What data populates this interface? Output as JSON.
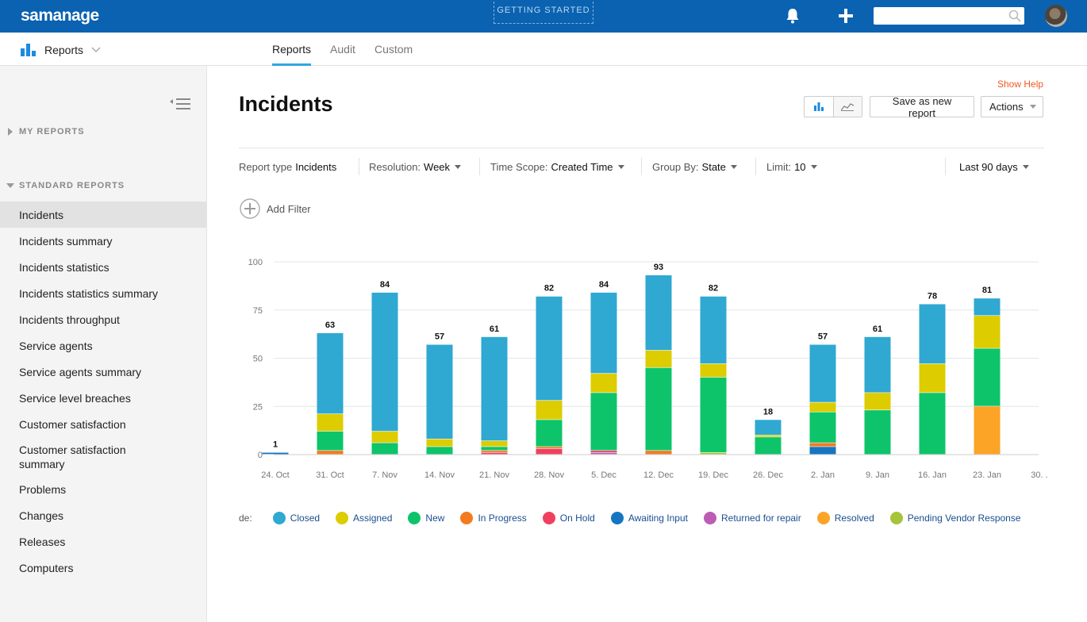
{
  "topbar": {
    "logo": "samanage",
    "getting_started": "GETTING STARTED",
    "search_placeholder": ""
  },
  "subnav": {
    "menu_label": "Reports",
    "tabs": [
      {
        "label": "Reports",
        "active": true
      },
      {
        "label": "Audit",
        "active": false
      },
      {
        "label": "Custom",
        "active": false
      }
    ]
  },
  "sidebar": {
    "my_reports": "MY REPORTS",
    "standard_reports": "STANDARD REPORTS",
    "items": [
      "Incidents",
      "Incidents summary",
      "Incidents statistics",
      "Incidents statistics summary",
      "Incidents throughput",
      "Service agents",
      "Service agents summary",
      "Service level breaches",
      "Customer satisfaction",
      "Customer satisfaction summary",
      "Problems",
      "Changes",
      "Releases",
      "Computers"
    ]
  },
  "main": {
    "show_help": "Show Help",
    "title": "Incidents",
    "save_button": "Save as new report",
    "actions_button": "Actions",
    "filters": {
      "report_type_label": "Report type",
      "report_type_value": "Incidents",
      "resolution_label": "Resolution:",
      "resolution_value": "Week",
      "time_scope_label": "Time Scope:",
      "time_scope_value": "Created Time",
      "group_by_label": "Group By:",
      "group_by_value": "State",
      "limit_label": "Limit:",
      "limit_value": "10",
      "range_value": "Last 90 days"
    },
    "add_filter": "Add Filter",
    "legend_title": "de:"
  },
  "colors": {
    "Closed": "#2fa8d2",
    "Assigned": "#ddcc00",
    "New": "#0dc46a",
    "In Progress": "#f47a20",
    "On Hold": "#f0405f",
    "Awaiting Input": "#1575c2",
    "Returned for repair": "#bd5cb4",
    "Resolved": "#fba426",
    "Pending Vendor Response": "#a6c43a"
  },
  "chart_data": {
    "type": "bar",
    "stacked": true,
    "categories": [
      "24. Oct",
      "31. Oct",
      "7. Nov",
      "14. Nov",
      "21. Nov",
      "28. Nov",
      "5. Dec",
      "12. Dec",
      "19. Dec",
      "26. Dec",
      "2. Jan",
      "9. Jan",
      "16. Jan",
      "23. Jan",
      "30. ..."
    ],
    "totals": [
      1,
      63,
      84,
      57,
      61,
      82,
      84,
      93,
      82,
      18,
      57,
      61,
      78,
      81,
      null
    ],
    "ylim": [
      0,
      100
    ],
    "yticks": [
      0,
      25,
      50,
      75,
      100
    ],
    "grid": true,
    "legend": "bottom",
    "series": [
      {
        "name": "Awaiting Input",
        "values": [
          1,
          0,
          0,
          0,
          0,
          0,
          0,
          0,
          0,
          0,
          4,
          0,
          0,
          0,
          0
        ]
      },
      {
        "name": "Pending Vendor Response",
        "values": [
          0,
          0,
          0,
          0,
          0,
          0,
          0,
          0,
          1,
          0,
          0,
          0,
          0,
          0,
          0
        ]
      },
      {
        "name": "Resolved",
        "values": [
          0,
          0,
          0,
          0,
          0,
          0,
          0,
          0,
          0,
          0,
          0,
          0,
          0,
          25,
          0
        ]
      },
      {
        "name": "Returned for repair",
        "values": [
          0,
          0,
          0,
          0,
          0,
          0,
          1,
          0,
          0,
          0,
          0,
          0,
          0,
          0,
          0
        ]
      },
      {
        "name": "On Hold",
        "values": [
          0,
          0,
          0,
          0,
          1,
          3,
          1,
          0,
          0,
          0,
          0,
          0,
          0,
          0,
          0
        ]
      },
      {
        "name": "In Progress",
        "values": [
          0,
          2,
          0,
          0,
          1,
          1,
          0,
          2,
          0,
          0,
          2,
          0,
          0,
          0,
          0
        ]
      },
      {
        "name": "New",
        "values": [
          0,
          10,
          6,
          4,
          2,
          14,
          30,
          43,
          39,
          9,
          16,
          23,
          32,
          30,
          0
        ]
      },
      {
        "name": "Assigned",
        "values": [
          0,
          9,
          6,
          4,
          3,
          10,
          10,
          9,
          7,
          1,
          5,
          9,
          15,
          17,
          0
        ]
      },
      {
        "name": "Closed",
        "values": [
          0,
          42,
          72,
          49,
          54,
          54,
          42,
          39,
          35,
          8,
          30,
          29,
          31,
          9,
          0
        ]
      }
    ],
    "legend_order": [
      "Closed",
      "Assigned",
      "New",
      "In Progress",
      "On Hold",
      "Awaiting Input",
      "Returned for repair",
      "Resolved",
      "Pending Vendor Response"
    ]
  }
}
